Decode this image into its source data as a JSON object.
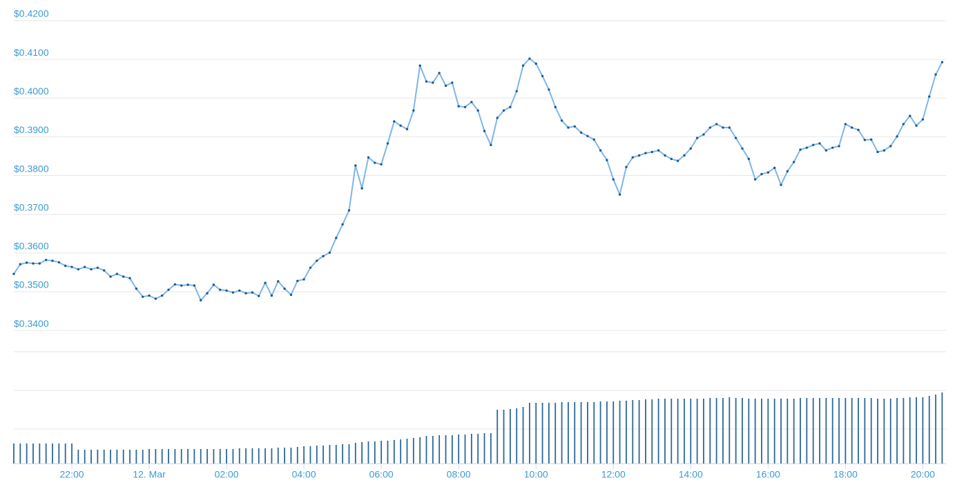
{
  "chart_data": [
    {
      "type": "line",
      "color": "#7cb5ec",
      "marker_color": "#1c5a8a",
      "grid": true,
      "x": [
        1230,
        1240,
        1250,
        1260,
        1270,
        1280,
        1290,
        1300,
        1310,
        1320,
        1330,
        1340,
        1350,
        1360,
        1370,
        1380,
        1390,
        1400,
        1410,
        1420,
        1430,
        1440,
        1450,
        1460,
        1470,
        1480,
        1490,
        1500,
        1510,
        1520,
        1530,
        1540,
        1550,
        1560,
        1570,
        1580,
        1590,
        1600,
        1610,
        1620,
        1630,
        1640,
        1650,
        1660,
        1670,
        1680,
        1690,
        1700,
        1710,
        1720,
        1730,
        1740,
        1750,
        1760,
        1770,
        1780,
        1790,
        1800,
        1810,
        1820,
        1830,
        1840,
        1850,
        1860,
        1870,
        1880,
        1890,
        1900,
        1910,
        1920,
        1930,
        1940,
        1950,
        1960,
        1970,
        1980,
        1990,
        2000,
        2010,
        2020,
        2030,
        2040,
        2050,
        2060,
        2070,
        2080,
        2090,
        2100,
        2110,
        2120,
        2130,
        2140,
        2150,
        2160,
        2170,
        2180,
        2190,
        2200,
        2210,
        2220,
        2230,
        2240,
        2250,
        2260,
        2270,
        2280,
        2290,
        2300,
        2310,
        2320,
        2330,
        2340,
        2350,
        2360,
        2370,
        2380,
        2390,
        2400,
        2410,
        2420,
        2430,
        2440,
        2450,
        2460,
        2470,
        2480,
        2490,
        2500,
        2510,
        2520,
        2530,
        2540,
        2550,
        2560,
        2570,
        2580,
        2590,
        2600,
        2610,
        2620,
        2630,
        2640,
        2650,
        2660,
        2670
      ],
      "values": [
        0.3546,
        0.3571,
        0.3575,
        0.3573,
        0.3573,
        0.3582,
        0.358,
        0.3576,
        0.3567,
        0.3564,
        0.3558,
        0.3564,
        0.3558,
        0.3562,
        0.3555,
        0.3539,
        0.3546,
        0.3539,
        0.3535,
        0.3508,
        0.3487,
        0.349,
        0.3482,
        0.349,
        0.3505,
        0.3519,
        0.3516,
        0.3518,
        0.3516,
        0.3478,
        0.3496,
        0.3518,
        0.3505,
        0.3503,
        0.3498,
        0.3503,
        0.3496,
        0.3498,
        0.3489,
        0.3523,
        0.349,
        0.3527,
        0.3508,
        0.3492,
        0.3528,
        0.3532,
        0.3562,
        0.358,
        0.3592,
        0.3601,
        0.3639,
        0.3674,
        0.371,
        0.3826,
        0.3767,
        0.3847,
        0.3833,
        0.3829,
        0.3883,
        0.394,
        0.3929,
        0.392,
        0.3968,
        0.4084,
        0.4043,
        0.404,
        0.4065,
        0.4032,
        0.404,
        0.3979,
        0.3977,
        0.399,
        0.3968,
        0.3915,
        0.3879,
        0.3949,
        0.3968,
        0.3977,
        0.4018,
        0.4084,
        0.4102,
        0.4089,
        0.4057,
        0.4022,
        0.3977,
        0.3942,
        0.3924,
        0.3927,
        0.3911,
        0.3902,
        0.3893,
        0.3865,
        0.384,
        0.379,
        0.3751,
        0.3822,
        0.3847,
        0.3852,
        0.3858,
        0.3861,
        0.3865,
        0.3852,
        0.3843,
        0.3838,
        0.3852,
        0.387,
        0.3897,
        0.3906,
        0.3924,
        0.3933,
        0.3924,
        0.3924,
        0.3897,
        0.387,
        0.3843,
        0.379,
        0.3804,
        0.3808,
        0.382,
        0.3776,
        0.3811,
        0.3835,
        0.3867,
        0.3872,
        0.3879,
        0.3883,
        0.3865,
        0.3872,
        0.3876,
        0.3933,
        0.3924,
        0.3918,
        0.3892,
        0.3893,
        0.3861,
        0.3865,
        0.3876,
        0.3901,
        0.3933,
        0.3954,
        0.3929,
        0.3945,
        0.4004,
        0.4061,
        0.4093
      ],
      "xlim": [
        1230,
        2676
      ],
      "xticks": [
        {
          "value": 1320,
          "label": "22:00"
        },
        {
          "value": 1440,
          "label": "12. Mar"
        },
        {
          "value": 1560,
          "label": "02:00"
        },
        {
          "value": 1680,
          "label": "04:00"
        },
        {
          "value": 1800,
          "label": "06:00"
        },
        {
          "value": 1920,
          "label": "08:00"
        },
        {
          "value": 2040,
          "label": "10:00"
        },
        {
          "value": 2160,
          "label": "12:00"
        },
        {
          "value": 2280,
          "label": "14:00"
        },
        {
          "value": 2400,
          "label": "16:00"
        },
        {
          "value": 2520,
          "label": "18:00"
        },
        {
          "value": 2640,
          "label": "20:00"
        }
      ],
      "ylim": [
        0.3345,
        0.42
      ],
      "yticks": [
        {
          "value": 0.34,
          "label": "$0.3400"
        },
        {
          "value": 0.35,
          "label": "$0.3500"
        },
        {
          "value": 0.36,
          "label": "$0.3600"
        },
        {
          "value": 0.37,
          "label": "$0.3700"
        },
        {
          "value": 0.38,
          "label": "$0.3800"
        },
        {
          "value": 0.39,
          "label": "$0.3900"
        },
        {
          "value": 0.4,
          "label": "$0.4000"
        },
        {
          "value": 0.41,
          "label": "$0.4100"
        },
        {
          "value": 0.42,
          "label": "$0.4200"
        }
      ]
    },
    {
      "type": "bar",
      "color": "#2a6799",
      "values": [
        29,
        29,
        29,
        29,
        29,
        29,
        29,
        29,
        29,
        29,
        20,
        20,
        20,
        20,
        20,
        20,
        20,
        20,
        20,
        20,
        20,
        21,
        21,
        21,
        21,
        21,
        21,
        21,
        21,
        21,
        21,
        21,
        21,
        21,
        21,
        22,
        22,
        22,
        22,
        22,
        22,
        23,
        23,
        23,
        24,
        25,
        25,
        26,
        26,
        27,
        27,
        28,
        28,
        30,
        31,
        32,
        32,
        33,
        33,
        34,
        35,
        36,
        37,
        38,
        40,
        40,
        41,
        41,
        41,
        42,
        42,
        43,
        43,
        44,
        44,
        78,
        78,
        79,
        80,
        82,
        88,
        88,
        88,
        88,
        88,
        89,
        89,
        89,
        89,
        89,
        89,
        90,
        90,
        90,
        91,
        91,
        92,
        92,
        93,
        93,
        94,
        94,
        94,
        94,
        94,
        94,
        94,
        94,
        95,
        95,
        95,
        96,
        95,
        95,
        94,
        94,
        94,
        94,
        94,
        94,
        94,
        94,
        95,
        95,
        95,
        95,
        95,
        95,
        95,
        95,
        95,
        95,
        95,
        95,
        94,
        94,
        94,
        95,
        95,
        96,
        96,
        96,
        98,
        100,
        103
      ],
      "ylim": [
        0,
        162
      ]
    }
  ]
}
